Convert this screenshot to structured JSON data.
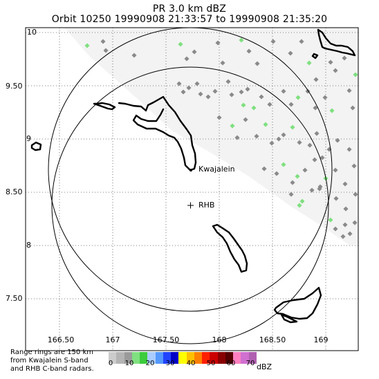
{
  "title": {
    "line1": "PR  3.0 km dBZ",
    "line2": "Orbit 10250 19990908 21:33:57 to 19990908 21:35:20"
  },
  "axes": {
    "lat_ticks": [
      "10",
      "9.50",
      "9",
      "8.50",
      "8",
      "7.50"
    ],
    "lon_ticks": [
      "166.50",
      "167",
      "167.50",
      "168",
      "168.50",
      "169"
    ]
  },
  "places": {
    "kwajalein": "Kwajalein",
    "rhb": "RHB",
    "rhb_marker": "+"
  },
  "footnote": {
    "line1": "Range rings are 150 km",
    "line2": "from Kwajalein S-band",
    "line3": "and RHB C-band radars."
  },
  "scale": {
    "labels": [
      "0",
      "10",
      "20",
      "30",
      "40",
      "50",
      "60",
      "70"
    ],
    "units": "dBZ",
    "colors": [
      "#cccccc",
      "#b4b4b4",
      "#9a9a9a",
      "#80e080",
      "#3ccc3c",
      "#aaccff",
      "#5599ff",
      "#2244ff",
      "#0000c8",
      "#ffff00",
      "#ffc000",
      "#ff8000",
      "#ff2000",
      "#cc0000",
      "#880000",
      "#550000",
      "#ff80c0",
      "#d070d0",
      "#b060b0"
    ]
  },
  "legend_colors": {
    "light_echo": "#8a8a8a",
    "green_echo": "#7fe07f",
    "swath": "#f3f3f3"
  },
  "chart_data": {
    "type": "map",
    "product": "PR 3.0 km dBZ",
    "orbit": "10250",
    "time_start": "19990908 21:33:57",
    "time_end": "19990908 21:35:20",
    "lon_range": [
      166.25,
      169.25
    ],
    "lat_range": [
      7.25,
      10.1
    ],
    "range_ring_km": 150,
    "radars": [
      {
        "name": "Kwajalein",
        "lon": 167.73,
        "lat": 8.72
      },
      {
        "name": "RHB",
        "lon": 167.73,
        "lat": 8.38
      }
    ]
  }
}
